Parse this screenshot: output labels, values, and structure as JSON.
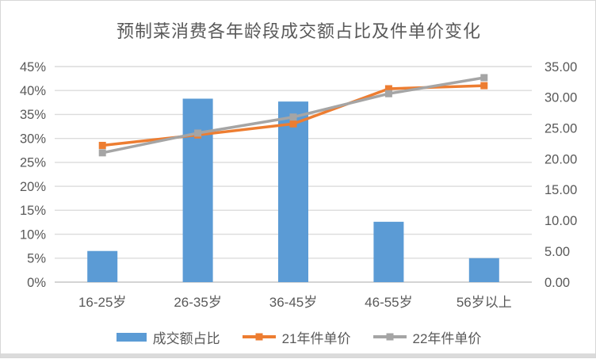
{
  "title": "预制菜消费各年龄段成交额占比及件单价变化",
  "colors": {
    "bar_blue": "#5B9BD5",
    "line_orange": "#ED7D31",
    "line_gray": "#A5A5A5",
    "gridline": "#DCDCDC",
    "axis_line": "#C6C6C6",
    "text": "#595959",
    "card_border": "#D7D7D7",
    "window_edge": "#DBDBDB"
  },
  "chart_data": {
    "type": "combo",
    "title": "预制菜消费各年龄段成交额占比及件单价变化",
    "categories": [
      "16-25岁",
      "26-35岁",
      "36-45岁",
      "46-55岁",
      "56岁以上"
    ],
    "series": [
      {
        "name": "成交额占比",
        "type": "bar",
        "axis": "left",
        "color": "#5B9BD5",
        "values": [
          6.5,
          38.3,
          37.7,
          12.6,
          5.0
        ],
        "unit": "%"
      },
      {
        "name": "21年件单价",
        "type": "line",
        "axis": "right",
        "color": "#ED7D31",
        "values": [
          22.2,
          23.9,
          25.7,
          31.4,
          31.9
        ]
      },
      {
        "name": "22年件单价",
        "type": "line",
        "axis": "right",
        "color": "#A5A5A5",
        "values": [
          21.0,
          24.2,
          26.8,
          30.6,
          33.2
        ]
      }
    ],
    "left_axis": {
      "min": 0,
      "max": 45,
      "step": 5,
      "format": "percent",
      "tick_labels": [
        "0%",
        "5%",
        "10%",
        "15%",
        "20%",
        "25%",
        "30%",
        "35%",
        "40%",
        "45%"
      ]
    },
    "right_axis": {
      "min": 0,
      "max": 35,
      "step": 5,
      "format": "2-decimals",
      "tick_labels": [
        "0.00",
        "5.00",
        "10.00",
        "15.00",
        "20.00",
        "25.00",
        "30.00",
        "35.00"
      ]
    },
    "grid": true,
    "legend_position": "bottom"
  },
  "legend": {
    "items": [
      {
        "label": "成交额占比",
        "swatch": "bar",
        "color": "#5B9BD5"
      },
      {
        "label": "21年件单价",
        "swatch": "line-marker",
        "color": "#ED7D31"
      },
      {
        "label": "22年件单价",
        "swatch": "line-marker",
        "color": "#A5A5A5"
      }
    ]
  }
}
